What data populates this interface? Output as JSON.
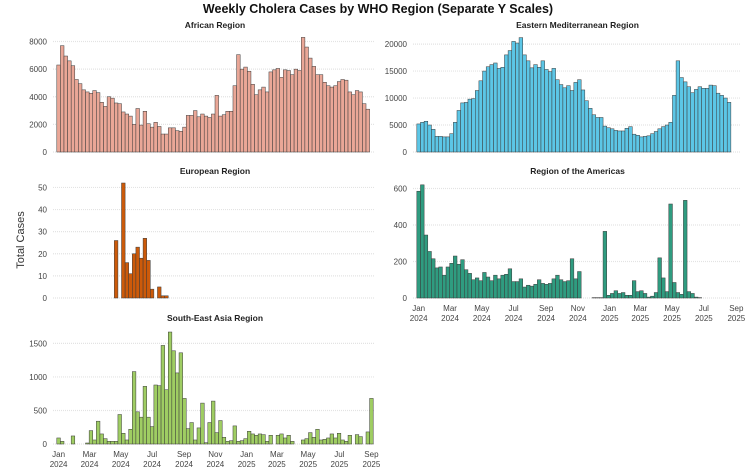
{
  "chart_data": {
    "type": "bar",
    "title": "Weekly Cholera Cases by WHO Region (Separate Y Scales)",
    "ylabel": "Total Cases",
    "xlabel": "",
    "x_unit": "week index from Jan 1 2024",
    "x_range": [
      -1,
      88
    ],
    "x_ticks": [
      {
        "week": 0,
        "label": [
          "Jan",
          "2024"
        ]
      },
      {
        "week": 8.6,
        "label": [
          "Mar",
          "2024"
        ]
      },
      {
        "week": 17.3,
        "label": [
          "May",
          "2024"
        ]
      },
      {
        "week": 26,
        "label": [
          "Jul",
          "2024"
        ]
      },
      {
        "week": 34.9,
        "label": [
          "Sep",
          "2024"
        ]
      },
      {
        "week": 43.6,
        "label": [
          "Nov",
          "2024"
        ]
      },
      {
        "week": 52.3,
        "label": [
          "Jan",
          "2025"
        ]
      },
      {
        "week": 60.7,
        "label": [
          "Mar",
          "2025"
        ]
      },
      {
        "week": 69.4,
        "label": [
          "May",
          "2025"
        ]
      },
      {
        "week": 78.1,
        "label": [
          "Jul",
          "2025"
        ]
      },
      {
        "week": 87,
        "label": [
          "Sep",
          "2025"
        ]
      }
    ],
    "grid": true,
    "panels": [
      {
        "name": "African Region",
        "color": "#eaa797",
        "ylim": [
          0,
          8400
        ],
        "yticks": [
          0,
          2000,
          4000,
          6000,
          8000
        ],
        "start_week": 0,
        "values": [
          6300,
          7700,
          6950,
          6600,
          6250,
          5250,
          4950,
          4500,
          4350,
          4250,
          4450,
          4300,
          3600,
          3300,
          4000,
          3900,
          3550,
          3500,
          2900,
          2750,
          2600,
          2000,
          3150,
          1950,
          2950,
          2050,
          1800,
          2150,
          1850,
          1300,
          1300,
          1750,
          1750,
          1550,
          1500,
          1800,
          2650,
          2650,
          3000,
          2550,
          2750,
          2600,
          2500,
          2750,
          4100,
          2600,
          2700,
          2950,
          2950,
          4800,
          7050,
          6000,
          6150,
          5850,
          4900,
          4150,
          4500,
          4700,
          4350,
          5800,
          5950,
          6050,
          5400,
          5950,
          5900,
          5600,
          6000,
          5900,
          8300,
          7600,
          6800,
          6200,
          5600,
          5600,
          5050,
          4800,
          4700,
          4800,
          5100,
          5250,
          5200,
          4350,
          4150,
          4450,
          4350,
          3500,
          3100
        ]
      },
      {
        "name": "Eastern Mediterranean Region",
        "color": "#5cc6e6",
        "ylim": [
          0,
          21500
        ],
        "yticks": [
          0,
          5000,
          10000,
          15000,
          20000
        ],
        "start_week": 0,
        "values": [
          5200,
          5500,
          5700,
          5000,
          4200,
          2900,
          2900,
          2800,
          2800,
          3400,
          5500,
          7700,
          9100,
          9200,
          9800,
          9900,
          11400,
          13200,
          15000,
          15800,
          16200,
          16500,
          15500,
          15700,
          18000,
          18800,
          20500,
          20200,
          21200,
          18000,
          16900,
          15600,
          16200,
          15700,
          16900,
          15300,
          14900,
          15500,
          13400,
          12500,
          11900,
          12300,
          11400,
          12900,
          13400,
          11500,
          9500,
          8100,
          6900,
          6400,
          6400,
          4800,
          4500,
          4300,
          4000,
          3900,
          3900,
          4400,
          4700,
          3300,
          3100,
          2800,
          2900,
          3000,
          3400,
          3800,
          4300,
          4700,
          5000,
          5500,
          10500,
          16900,
          13800,
          13000,
          12100,
          11000,
          11600,
          12100,
          11800,
          11800,
          12400,
          12300,
          10900,
          10500,
          10000,
          9200
        ]
      },
      {
        "name": "European Region",
        "color": "#cc5a0a",
        "ylim": [
          0,
          52
        ],
        "yticks": [
          0,
          10,
          20,
          30,
          40,
          50
        ],
        "start_week": 16,
        "values": [
          26,
          0,
          52,
          16,
          11,
          20,
          23,
          18,
          27,
          17,
          4,
          0,
          5,
          1,
          1
        ]
      },
      {
        "name": "Region of the Americas",
        "color": "#2f9c80",
        "ylim": [
          0,
          630
        ],
        "yticks": [
          0,
          200,
          400,
          600
        ],
        "start_week": 0,
        "values": [
          585,
          620,
          345,
          255,
          215,
          165,
          170,
          125,
          170,
          190,
          230,
          185,
          210,
          155,
          135,
          100,
          110,
          95,
          140,
          115,
          95,
          125,
          105,
          125,
          130,
          160,
          90,
          90,
          105,
          60,
          70,
          65,
          75,
          100,
          80,
          75,
          80,
          105,
          125,
          100,
          90,
          95,
          215,
          105,
          145,
          null,
          null,
          null,
          2,
          2,
          2,
          365,
          15,
          25,
          40,
          25,
          30,
          15,
          15,
          95,
          35,
          40,
          25,
          5,
          10,
          30,
          220,
          110,
          35,
          515,
          85,
          30,
          20,
          535,
          35,
          25,
          5,
          2
        ]
      },
      {
        "name": "South-East Asia Region",
        "color": "#9fcd63",
        "ylim": [
          0,
          1700
        ],
        "yticks": [
          0,
          500,
          1000,
          1500
        ],
        "start_week": 0,
        "values": [
          90,
          40,
          0,
          0,
          120,
          0,
          0,
          0,
          15,
          200,
          60,
          340,
          150,
          80,
          40,
          40,
          40,
          440,
          160,
          60,
          220,
          1080,
          480,
          400,
          860,
          400,
          260,
          880,
          870,
          1470,
          810,
          1670,
          1390,
          1060,
          1360,
          680,
          230,
          320,
          60,
          240,
          610,
          20,
          320,
          640,
          170,
          350,
          100,
          40,
          50,
          270,
          40,
          50,
          80,
          190,
          150,
          130,
          150,
          140,
          40,
          130,
          0,
          130,
          150,
          90,
          130,
          40,
          0,
          0,
          60,
          80,
          170,
          100,
          220,
          60,
          70,
          90,
          150,
          90,
          160,
          60,
          40,
          130,
          0,
          140,
          110,
          0,
          180,
          680
        ]
      }
    ]
  }
}
